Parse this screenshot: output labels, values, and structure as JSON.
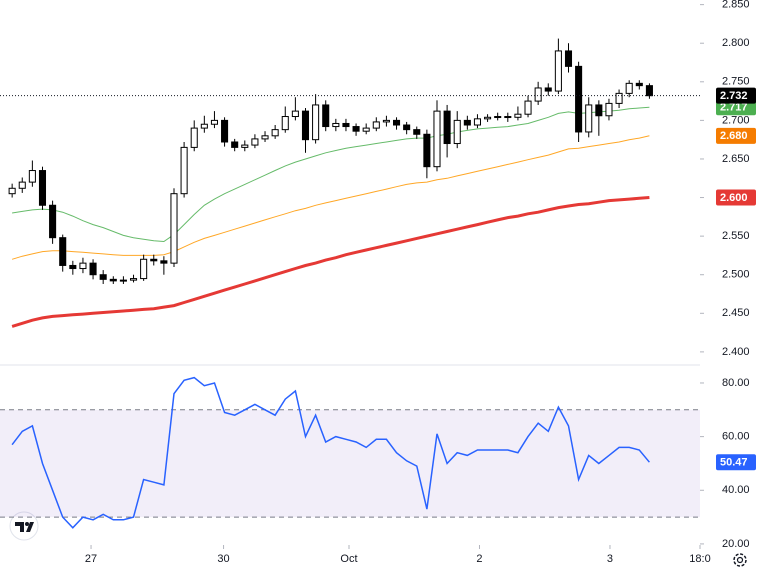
{
  "chart_data": [
    {
      "type": "candlestick",
      "open": [
        2.605,
        2.612,
        2.62,
        2.635,
        2.59,
        2.548,
        2.512,
        2.508,
        2.515,
        2.5,
        2.494,
        2.492,
        2.493,
        2.495,
        2.52,
        2.518,
        2.515,
        2.605,
        2.665,
        2.69,
        2.695,
        2.7,
        2.672,
        2.665,
        2.668,
        2.676,
        2.68,
        2.688,
        2.705,
        2.712,
        2.675,
        2.72,
        2.692,
        2.696,
        2.692,
        2.686,
        2.69,
        2.698,
        2.7,
        2.694,
        2.688,
        2.682,
        2.64,
        2.712,
        2.67,
        2.7,
        2.694,
        2.702,
        2.704,
        2.705,
        2.704,
        2.708,
        2.725,
        2.742,
        2.738,
        2.79,
        2.77,
        2.685,
        2.72,
        2.706,
        2.722,
        2.735,
        2.748,
        2.745
      ],
      "high": [
        2.618,
        2.626,
        2.648,
        2.64,
        2.596,
        2.552,
        2.518,
        2.522,
        2.52,
        2.506,
        2.498,
        2.498,
        2.5,
        2.526,
        2.526,
        2.524,
        2.612,
        2.672,
        2.7,
        2.706,
        2.712,
        2.704,
        2.676,
        2.674,
        2.682,
        2.686,
        2.694,
        2.718,
        2.73,
        2.716,
        2.734,
        2.726,
        2.702,
        2.702,
        2.696,
        2.696,
        2.704,
        2.706,
        2.704,
        2.698,
        2.692,
        2.688,
        2.726,
        2.72,
        2.712,
        2.706,
        2.708,
        2.708,
        2.71,
        2.71,
        2.718,
        2.732,
        2.75,
        2.748,
        2.806,
        2.8,
        2.776,
        2.73,
        2.726,
        2.728,
        2.74,
        2.752,
        2.752,
        2.748
      ],
      "low": [
        2.6,
        2.606,
        2.614,
        2.584,
        2.54,
        2.504,
        2.5,
        2.502,
        2.494,
        2.488,
        2.488,
        2.488,
        2.49,
        2.492,
        2.512,
        2.5,
        2.51,
        2.6,
        2.66,
        2.684,
        2.69,
        2.666,
        2.66,
        2.66,
        2.664,
        2.672,
        2.676,
        2.684,
        2.7,
        2.658,
        2.67,
        2.686,
        2.686,
        2.686,
        2.68,
        2.682,
        2.686,
        2.692,
        2.688,
        2.682,
        2.676,
        2.625,
        2.634,
        2.652,
        2.664,
        2.688,
        2.69,
        2.698,
        2.7,
        2.698,
        2.7,
        2.704,
        2.72,
        2.732,
        2.734,
        2.762,
        2.672,
        2.678,
        2.68,
        2.7,
        2.716,
        2.73,
        2.74,
        2.728
      ],
      "close": [
        2.612,
        2.62,
        2.635,
        2.59,
        2.548,
        2.512,
        2.508,
        2.515,
        2.5,
        2.494,
        2.492,
        2.493,
        2.495,
        2.52,
        2.518,
        2.515,
        2.605,
        2.665,
        2.69,
        2.695,
        2.7,
        2.672,
        2.665,
        2.668,
        2.676,
        2.68,
        2.688,
        2.705,
        2.712,
        2.675,
        2.72,
        2.692,
        2.696,
        2.692,
        2.686,
        2.69,
        2.698,
        2.7,
        2.694,
        2.688,
        2.682,
        2.64,
        2.712,
        2.67,
        2.7,
        2.694,
        2.702,
        2.704,
        2.705,
        2.704,
        2.708,
        2.725,
        2.742,
        2.738,
        2.79,
        2.77,
        2.685,
        2.72,
        2.706,
        2.722,
        2.735,
        2.748,
        2.745,
        2.732
      ],
      "last_close_label": "2.732",
      "up_color": "#ffffff",
      "down_color": "#000000",
      "lines": [
        {
          "color": "#66bb6a",
          "width": 1,
          "label_color": "#4caf50",
          "last_value_label": "2.717",
          "values": [
            2.58,
            2.582,
            2.584,
            2.585,
            2.584,
            2.581,
            2.576,
            2.57,
            2.565,
            2.561,
            2.556,
            2.551,
            2.548,
            2.546,
            2.544,
            2.543,
            2.552,
            2.565,
            2.578,
            2.59,
            2.598,
            2.605,
            2.611,
            2.617,
            2.623,
            2.629,
            2.635,
            2.641,
            2.646,
            2.65,
            2.654,
            2.658,
            2.661,
            2.664,
            2.666,
            2.668,
            2.67,
            2.672,
            2.674,
            2.676,
            2.677,
            2.677,
            2.68,
            2.682,
            2.685,
            2.687,
            2.689,
            2.69,
            2.691,
            2.692,
            2.694,
            2.696,
            2.7,
            2.704,
            2.709,
            2.711,
            2.709,
            2.71,
            2.711,
            2.712,
            2.713,
            2.715,
            2.716,
            2.717
          ]
        },
        {
          "color": "#ffa726",
          "width": 1,
          "label_color": "#f57c00",
          "last_value_label": "2.680",
          "values": [
            2.52,
            2.524,
            2.527,
            2.53,
            2.531,
            2.531,
            2.53,
            2.529,
            2.528,
            2.527,
            2.526,
            2.525,
            2.525,
            2.525,
            2.525,
            2.526,
            2.53,
            2.536,
            2.542,
            2.547,
            2.551,
            2.555,
            2.559,
            2.563,
            2.567,
            2.571,
            2.575,
            2.579,
            2.583,
            2.586,
            2.59,
            2.593,
            2.596,
            2.599,
            2.602,
            2.605,
            2.608,
            2.611,
            2.614,
            2.617,
            2.619,
            2.62,
            2.623,
            2.625,
            2.628,
            2.631,
            2.634,
            2.637,
            2.64,
            2.643,
            2.646,
            2.649,
            2.652,
            2.655,
            2.659,
            2.663,
            2.664,
            2.666,
            2.668,
            2.67,
            2.672,
            2.675,
            2.677,
            2.68
          ]
        },
        {
          "color": "#e53935",
          "width": 3,
          "label_color": "#e53935",
          "last_value_label": "2.600",
          "values": [
            2.433,
            2.437,
            2.441,
            2.444,
            2.446,
            2.447,
            2.448,
            2.449,
            2.45,
            2.451,
            2.452,
            2.453,
            2.454,
            2.455,
            2.456,
            2.458,
            2.46,
            2.464,
            2.468,
            2.472,
            2.476,
            2.48,
            2.484,
            2.488,
            2.492,
            2.496,
            2.5,
            2.504,
            2.508,
            2.512,
            2.515,
            2.519,
            2.522,
            2.526,
            2.529,
            2.532,
            2.535,
            2.538,
            2.541,
            2.544,
            2.547,
            2.55,
            2.553,
            2.556,
            2.559,
            2.562,
            2.565,
            2.568,
            2.571,
            2.574,
            2.576,
            2.579,
            2.581,
            2.584,
            2.587,
            2.589,
            2.591,
            2.592,
            2.594,
            2.596,
            2.597,
            2.598,
            2.599,
            2.6
          ]
        }
      ],
      "xlim": [
        -1.2,
        68
      ],
      "ylim": [
        2.383,
        2.856
      ],
      "yticks": [
        {
          "value": 2.4,
          "label": "2.400"
        },
        {
          "value": 2.45,
          "label": "2.450"
        },
        {
          "value": 2.5,
          "label": "2.500"
        },
        {
          "value": 2.55,
          "label": "2.550"
        },
        {
          "value": 2.6,
          "label": "2.600"
        },
        {
          "value": 2.65,
          "label": "2.650"
        },
        {
          "value": 2.7,
          "label": "2.700"
        },
        {
          "value": 2.75,
          "label": "2.750"
        },
        {
          "value": 2.8,
          "label": "2.800"
        },
        {
          "value": 2.85,
          "label": "2.850"
        }
      ]
    },
    {
      "type": "line",
      "color": "#2962ff",
      "values": [
        57,
        62,
        64,
        50,
        40,
        30,
        26,
        30,
        29,
        31,
        29,
        29,
        30,
        44,
        43,
        42,
        76,
        81,
        82,
        79,
        80,
        69,
        68,
        70,
        72,
        70,
        68,
        74,
        77,
        60,
        68,
        58,
        60,
        59,
        58,
        56,
        59,
        59,
        54,
        51,
        49,
        33,
        61,
        50,
        54,
        53,
        55,
        55,
        55,
        55,
        54,
        60,
        65,
        62,
        71,
        64,
        44,
        53,
        50,
        53,
        56,
        56,
        55,
        50.47
      ],
      "last_value_label": "50.47",
      "bands": [
        30,
        70
      ],
      "band_color": "#7e57c2",
      "xlim": [
        -1.2,
        68
      ],
      "ylim": [
        19.6,
        86.7
      ],
      "yticks": [
        {
          "value": 20,
          "label": "20.00"
        },
        {
          "value": 40,
          "label": "40.00"
        },
        {
          "value": 60,
          "label": "60.00"
        },
        {
          "value": 80,
          "label": "80.00"
        }
      ],
      "xticks": [
        {
          "value": 7.8,
          "label": "27"
        },
        {
          "value": 20.9,
          "label": "30"
        },
        {
          "value": 33.3,
          "label": "Oct"
        },
        {
          "value": 46.2,
          "label": "2"
        },
        {
          "value": 59.1,
          "label": "3"
        },
        {
          "value": 68,
          "label": "18:0"
        }
      ]
    }
  ]
}
